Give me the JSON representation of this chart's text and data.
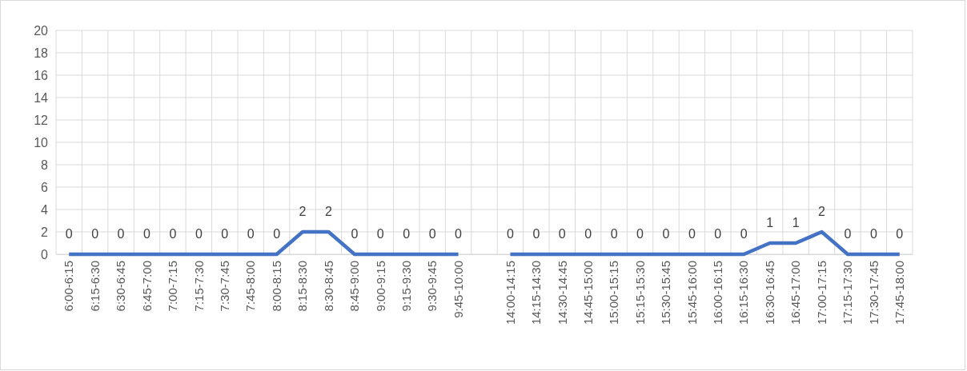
{
  "chart_data": {
    "type": "line",
    "categories": [
      "6:00-6:15",
      "6:15-6:30",
      "6:30-6:45",
      "6:45-7:00",
      "7:00-7:15",
      "7:15-7:30",
      "7:30-7:45",
      "7:45-8:00",
      "8:00-8:15",
      "8:15-8:30",
      "8:30-8:45",
      "8:45-9:00",
      "9:00-9:15",
      "9:15-9:30",
      "9:30-9:45",
      "9:45-10:00",
      null,
      "14:00-14:15",
      "14:15-14:30",
      "14:30-14:45",
      "14:45-15:00",
      "15:00-15:15",
      "15:15-15:30",
      "15:30-15:45",
      "15:45-16:00",
      "16:00-16:15",
      "16:15-16:30",
      "16:30-16:45",
      "16:45-17:00",
      "17:00-17:15",
      "17:15-17:30",
      "17:30-17:45",
      "17:45-18:00"
    ],
    "series": [
      {
        "color": "#4472c4",
        "values": [
          0,
          0,
          0,
          0,
          0,
          0,
          0,
          0,
          0,
          2,
          2,
          0,
          0,
          0,
          0,
          0,
          null,
          0,
          0,
          0,
          0,
          0,
          0,
          0,
          0,
          0,
          0,
          1,
          1,
          2,
          0,
          0,
          0
        ]
      }
    ],
    "ylim": [
      0,
      20
    ],
    "yticks": [
      0,
      2,
      4,
      6,
      8,
      10,
      12,
      14,
      16,
      18,
      20
    ],
    "grid": true,
    "data_labels": true,
    "marker": "none",
    "line_style": "solid"
  }
}
